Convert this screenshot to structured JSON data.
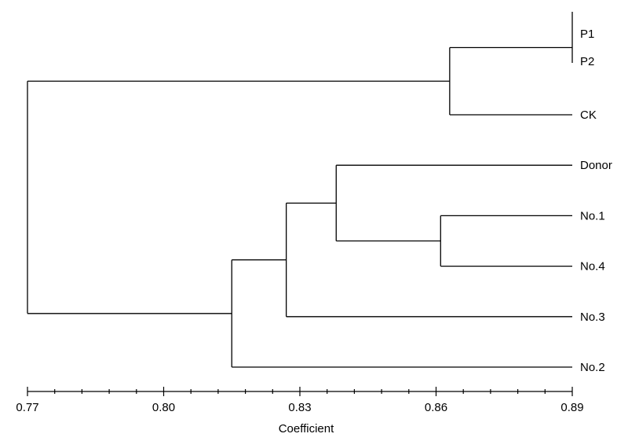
{
  "chart_data": {
    "type": "dendrogram",
    "xlabel": "Coefficient",
    "xlim": [
      0.77,
      0.89
    ],
    "tick_values": [
      0.77,
      0.8,
      0.83,
      0.86,
      0.89
    ],
    "tick_labels": [
      "0.77",
      "0.80",
      "0.83",
      "0.86",
      "0.89"
    ],
    "minor_ticks_per_major": 5,
    "leaves": [
      "P1",
      "P2",
      "CK",
      "Donor",
      "No.1",
      "No.4",
      "No.3",
      "No.2"
    ],
    "clusters": [
      {
        "id": "c1",
        "children": [
          "P1",
          "P2"
        ],
        "coefficient": 0.89
      },
      {
        "id": "c2",
        "children": [
          "No.1",
          "No.4"
        ],
        "coefficient": 0.861
      },
      {
        "id": "c3",
        "children": [
          "c1",
          "CK"
        ],
        "coefficient": 0.863
      },
      {
        "id": "c4",
        "children": [
          "Donor",
          "c2"
        ],
        "coefficient": 0.838
      },
      {
        "id": "c5",
        "children": [
          "c4",
          "No.3"
        ],
        "coefficient": 0.827
      },
      {
        "id": "c6",
        "children": [
          "c5",
          "No.2"
        ],
        "coefficient": 0.815
      },
      {
        "id": "c7",
        "children": [
          "c3",
          "c6"
        ],
        "coefficient": 0.77
      }
    ]
  }
}
